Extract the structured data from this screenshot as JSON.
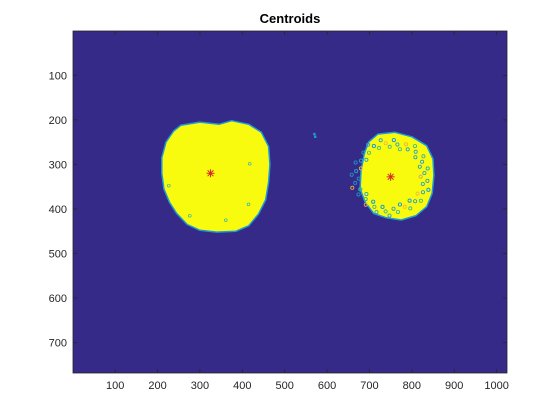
{
  "chart_data": {
    "type": "image",
    "title": "Centroids",
    "xlabel": "",
    "ylabel": "",
    "xlim": [
      0.5,
      1024.5
    ],
    "ylim": [
      0.5,
      768.5
    ],
    "y_direction": "reversed",
    "x_ticks": [
      100,
      200,
      300,
      400,
      500,
      600,
      700,
      800,
      900,
      1000
    ],
    "y_ticks": [
      100,
      200,
      300,
      400,
      500,
      600,
      700
    ],
    "grid": false,
    "colormap": "parula",
    "colors": {
      "background": "#352a87",
      "foreground": "#f9fb0e",
      "edge": "#1e9ad6",
      "edge_teal": "#33b7a0",
      "edge_orange": "#f7b240",
      "centroid_marker": "#d62728",
      "axes": "#262626"
    },
    "blobs": [
      {
        "name": "left",
        "outline": [
          [
            255,
            212
          ],
          [
            300,
            205
          ],
          [
            345,
            210
          ],
          [
            375,
            202
          ],
          [
            415,
            210
          ],
          [
            445,
            228
          ],
          [
            462,
            260
          ],
          [
            465,
            300
          ],
          [
            462,
            340
          ],
          [
            455,
            380
          ],
          [
            438,
            412
          ],
          [
            415,
            438
          ],
          [
            385,
            450
          ],
          [
            340,
            452
          ],
          [
            300,
            448
          ],
          [
            270,
            435
          ],
          [
            245,
            410
          ],
          [
            228,
            385
          ],
          [
            215,
            355
          ],
          [
            210,
            320
          ],
          [
            210,
            285
          ],
          [
            220,
            250
          ],
          [
            238,
            225
          ]
        ],
        "centroid": [
          325,
          320
        ]
      },
      {
        "name": "right",
        "outline": [
          [
            720,
            232
          ],
          [
            760,
            228
          ],
          [
            800,
            238
          ],
          [
            835,
            258
          ],
          [
            850,
            288
          ],
          [
            852,
            325
          ],
          [
            848,
            365
          ],
          [
            835,
            395
          ],
          [
            810,
            415
          ],
          [
            775,
            425
          ],
          [
            740,
            420
          ],
          [
            710,
            410
          ],
          [
            690,
            385
          ],
          [
            678,
            355
          ],
          [
            680,
            315
          ],
          [
            688,
            275
          ],
          [
            698,
            250
          ]
        ],
        "centroid": [
          750,
          328
        ]
      }
    ],
    "specks": [
      [
        570,
        232
      ],
      [
        572,
        238
      ]
    ],
    "marker_style": "asterisk"
  }
}
